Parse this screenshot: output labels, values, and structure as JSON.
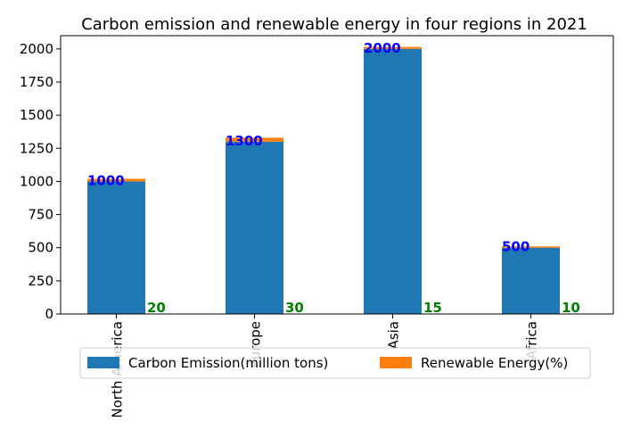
{
  "chart_data": {
    "type": "bar",
    "title": "Carbon emission and renewable energy in four regions in 2021",
    "categories": [
      "North America",
      "Europe",
      "Asia",
      "Africa"
    ],
    "series": [
      {
        "name": "Carbon Emission(million tons)",
        "values": [
          1000,
          1300,
          2000,
          500
        ],
        "color": "#1f77b4",
        "label_color": "#0000ff"
      },
      {
        "name": "Renewable Energy(%)",
        "values": [
          20,
          30,
          15,
          10
        ],
        "color": "#ff7f0e",
        "label_color": "#008000"
      }
    ],
    "stacked": true,
    "ylim": [
      0,
      2100
    ],
    "yticks": [
      0,
      250,
      500,
      750,
      1000,
      1250,
      1500,
      1750,
      2000
    ],
    "xtick_rotation": 90,
    "legend": "bottom-center"
  }
}
